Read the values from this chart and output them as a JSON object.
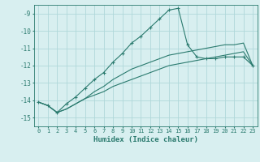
{
  "xlabel": "Humidex (Indice chaleur)",
  "ylabel": "",
  "bg_color": "#d8eff0",
  "grid_color": "#b0d8da",
  "line_color": "#2a7a6e",
  "xlim": [
    -0.5,
    23.5
  ],
  "ylim": [
    -15.5,
    -8.5
  ],
  "yticks": [
    -9,
    -10,
    -11,
    -12,
    -13,
    -14,
    -15
  ],
  "xticks": [
    0,
    1,
    2,
    3,
    4,
    5,
    6,
    7,
    8,
    9,
    10,
    11,
    12,
    13,
    14,
    15,
    16,
    17,
    18,
    19,
    20,
    21,
    22,
    23
  ],
  "series1_x": [
    0,
    1,
    2,
    3,
    4,
    5,
    6,
    7,
    8,
    9,
    10,
    11,
    12,
    13,
    14,
    15,
    16,
    17,
    18,
    19,
    20,
    21,
    22,
    23
  ],
  "series1_y": [
    -14.1,
    -14.3,
    -14.7,
    -14.2,
    -13.8,
    -13.3,
    -12.8,
    -12.4,
    -11.8,
    -11.3,
    -10.7,
    -10.3,
    -9.8,
    -9.3,
    -8.8,
    -8.7,
    -10.8,
    -11.5,
    -11.6,
    -11.6,
    -11.5,
    -11.5,
    -11.5,
    -12.0
  ],
  "series2_x": [
    0,
    1,
    2,
    3,
    4,
    5,
    6,
    7,
    8,
    9,
    10,
    11,
    12,
    13,
    14,
    15,
    16,
    17,
    18,
    19,
    20,
    21,
    22,
    23
  ],
  "series2_y": [
    -14.1,
    -14.3,
    -14.7,
    -14.5,
    -14.2,
    -13.9,
    -13.5,
    -13.2,
    -12.8,
    -12.5,
    -12.2,
    -12.0,
    -11.8,
    -11.6,
    -11.4,
    -11.3,
    -11.2,
    -11.1,
    -11.0,
    -10.9,
    -10.8,
    -10.8,
    -10.7,
    -12.0
  ],
  "series3_x": [
    0,
    1,
    2,
    3,
    4,
    5,
    6,
    7,
    8,
    9,
    10,
    11,
    12,
    13,
    14,
    15,
    16,
    17,
    18,
    19,
    20,
    21,
    22,
    23
  ],
  "series3_y": [
    -14.1,
    -14.3,
    -14.7,
    -14.5,
    -14.2,
    -13.9,
    -13.7,
    -13.5,
    -13.2,
    -13.0,
    -12.8,
    -12.6,
    -12.4,
    -12.2,
    -12.0,
    -11.9,
    -11.8,
    -11.7,
    -11.6,
    -11.5,
    -11.4,
    -11.3,
    -11.2,
    -12.0
  ]
}
